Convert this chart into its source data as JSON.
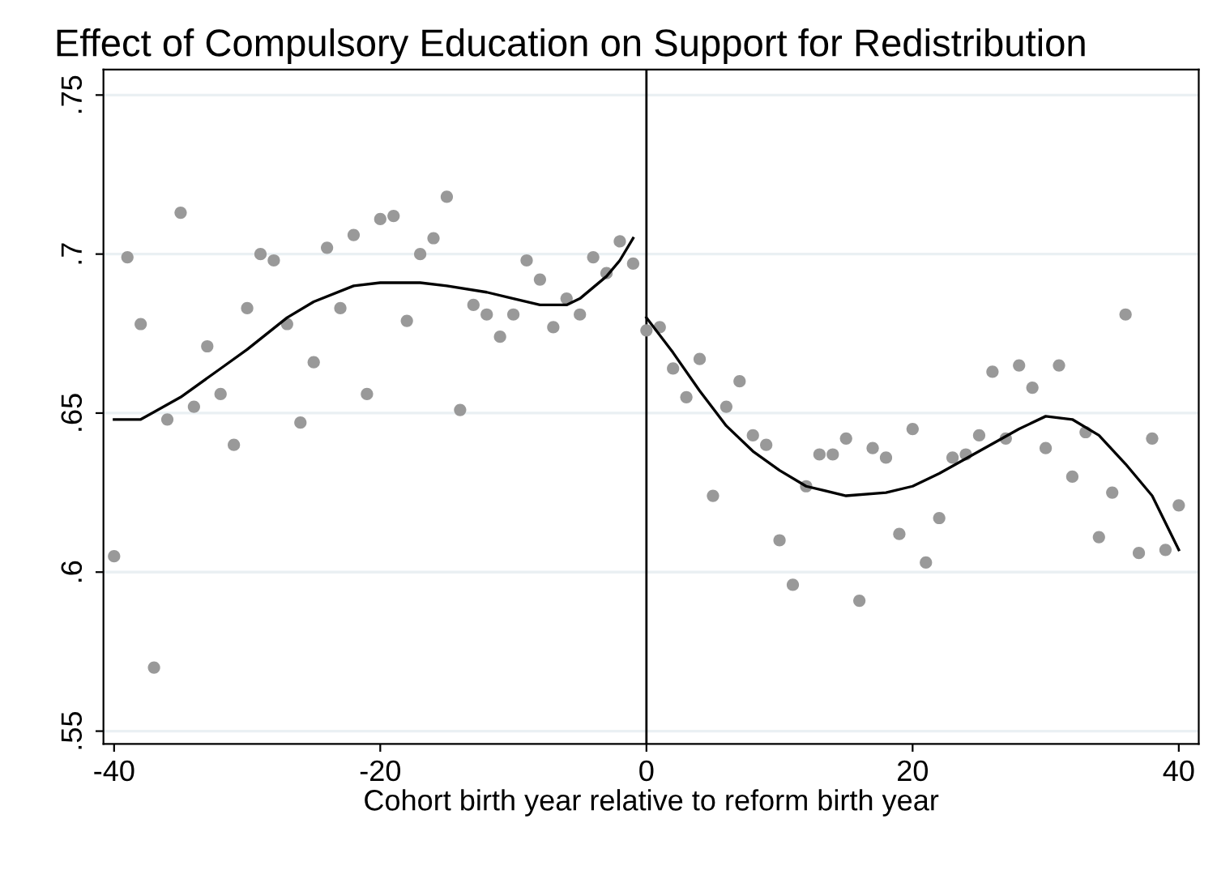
{
  "chart_data": {
    "type": "scatter",
    "title": "Effect of Compulsory Education on Support for Redistribution",
    "xlabel": "Cohort birth year relative to reform birth year",
    "xlim": [
      -40.8,
      41.5
    ],
    "xticks": [
      -40,
      -20,
      0,
      20,
      40
    ],
    "ylim": [
      0.546,
      0.758
    ],
    "yticks": [
      {
        "value": 0.55,
        "label": ".55"
      },
      {
        "value": 0.6,
        "label": ".6"
      },
      {
        "value": 0.65,
        "label": ".65"
      },
      {
        "value": 0.7,
        "label": ".7"
      },
      {
        "value": 0.75,
        "label": ".75"
      }
    ],
    "grid": "y",
    "legend": false,
    "ref_lines": [
      {
        "axis": "x",
        "value": 0,
        "color": "#000000"
      }
    ],
    "series": [
      {
        "color": "#999999",
        "marker": "circle",
        "x": [
          -40,
          -39,
          -38,
          -37,
          -36,
          -35,
          -34,
          -33,
          -32,
          -31,
          -30,
          -29,
          -28,
          -27,
          -26,
          -25,
          -24,
          -23,
          -22,
          -21,
          -20,
          -19,
          -18,
          -17,
          -16,
          -15,
          -14,
          -13,
          -12,
          -11,
          -10,
          -9,
          -8,
          -7,
          -6,
          -5,
          -4,
          -3,
          -2,
          -1
        ],
        "values": [
          0.605,
          0.699,
          0.678,
          0.57,
          0.648,
          0.713,
          0.652,
          0.671,
          0.656,
          0.64,
          0.683,
          0.7,
          0.698,
          0.678,
          0.647,
          0.666,
          0.702,
          0.683,
          0.706,
          0.656,
          0.711,
          0.712,
          0.679,
          0.7,
          0.705,
          0.718,
          0.651,
          0.684,
          0.681,
          0.674,
          0.681,
          0.698,
          0.692,
          0.677,
          0.686,
          0.681,
          0.699,
          0.694,
          0.704,
          0.697
        ]
      },
      {
        "color": "#999999",
        "marker": "circle",
        "x": [
          0,
          1,
          2,
          3,
          4,
          5,
          6,
          7,
          8,
          9,
          10,
          11,
          12,
          13,
          14,
          15,
          16,
          17,
          18,
          19,
          20,
          21,
          22,
          23,
          24,
          25,
          26,
          27,
          28,
          29,
          30,
          31,
          32,
          33,
          34,
          35,
          36,
          37,
          38,
          39,
          40
        ],
        "values": [
          0.676,
          0.677,
          0.664,
          0.655,
          0.667,
          0.624,
          0.652,
          0.66,
          0.643,
          0.64,
          0.61,
          0.596,
          0.627,
          0.637,
          0.637,
          0.642,
          0.591,
          0.639,
          0.636,
          0.612,
          0.645,
          0.603,
          0.617,
          0.636,
          0.637,
          0.643,
          0.663,
          0.642,
          0.665,
          0.658,
          0.639,
          0.665,
          0.63,
          0.644,
          0.611,
          0.625,
          0.681,
          0.606,
          0.642,
          0.607,
          0.621
        ]
      },
      {
        "type": "line",
        "color": "#000000",
        "line_style": "solid",
        "x": [
          -40,
          -38,
          -35,
          -32,
          -30,
          -27,
          -25,
          -22,
          -20,
          -17,
          -15,
          -12,
          -10,
          -8,
          -6,
          -5,
          -3,
          -2,
          -1
        ],
        "values": [
          0.648,
          0.648,
          0.655,
          0.664,
          0.67,
          0.68,
          0.685,
          0.69,
          0.691,
          0.691,
          0.69,
          0.688,
          0.686,
          0.684,
          0.684,
          0.686,
          0.693,
          0.698,
          0.705
        ]
      },
      {
        "type": "line",
        "color": "#000000",
        "line_style": "solid",
        "x": [
          0,
          2,
          4,
          6,
          8,
          10,
          12,
          15,
          18,
          20,
          22,
          25,
          28,
          30,
          32,
          34,
          36,
          38,
          40
        ],
        "values": [
          0.68,
          0.669,
          0.657,
          0.646,
          0.638,
          0.632,
          0.627,
          0.624,
          0.625,
          0.627,
          0.631,
          0.638,
          0.645,
          0.649,
          0.648,
          0.643,
          0.634,
          0.624,
          0.607
        ]
      }
    ]
  }
}
